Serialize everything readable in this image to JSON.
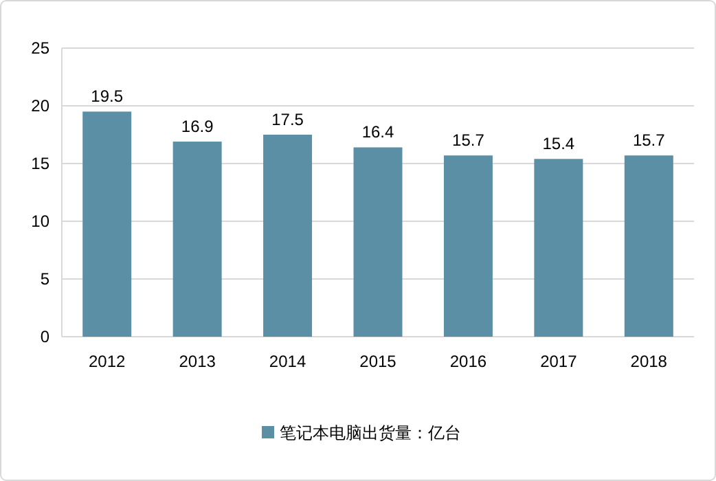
{
  "chart_data": {
    "type": "bar",
    "categories": [
      "2012",
      "2013",
      "2014",
      "2015",
      "2016",
      "2017",
      "2018"
    ],
    "series": [
      {
        "name": "笔记本电脑出货量：亿台",
        "color": "#5b8fa6",
        "values": [
          19.5,
          16.9,
          17.5,
          16.4,
          15.7,
          15.4,
          15.7
        ]
      }
    ],
    "ylim": [
      0,
      25
    ],
    "yticks": [
      0,
      5,
      10,
      15,
      20,
      25
    ],
    "grid": "y",
    "legend": "bottom",
    "data_labels": true
  }
}
